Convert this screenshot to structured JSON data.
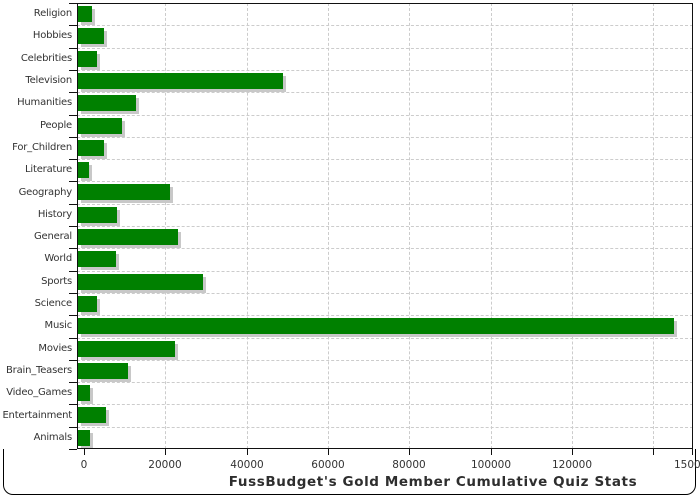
{
  "figure": {
    "title": "FussBudget's Gold Member Cumulative Quiz Stats"
  },
  "chart_data": {
    "type": "bar",
    "orientation": "horizontal",
    "title": "FussBudget's Gold Member Cumulative Quiz Stats",
    "categories": [
      "Religion",
      "Hobbies",
      "Celebrities",
      "Television",
      "Humanities",
      "People",
      "For_Children",
      "Literature",
      "Geography",
      "History",
      "General",
      "World",
      "Sports",
      "Science",
      "Music",
      "Movies",
      "Brain_Teasers",
      "Video_Games",
      "Entertainment",
      "Animals"
    ],
    "values": [
      1900,
      5000,
      3300,
      49000,
      12800,
      9300,
      4800,
      1300,
      21100,
      8000,
      23000,
      7800,
      29300,
      3200,
      145000,
      22400,
      10900,
      1500,
      5500,
      1400
    ],
    "xlabel": "",
    "ylabel": "",
    "xlim": [
      0,
      150000
    ],
    "x_tick_values": [
      0,
      20000,
      40000,
      60000,
      80000,
      100000,
      120000,
      140000,
      150000
    ],
    "x_tick_labels": [
      "0",
      "20000",
      "40000",
      "60000",
      "80000",
      "100000",
      "120000",
      "",
      "150000"
    ],
    "grid": "dashed, horizontal and vertical",
    "legend": "none",
    "colors": {
      "bar": "#008000",
      "bar_shadow": "#c8c8c8",
      "grid": "#cccccc",
      "frame": "#111111",
      "text": "#333333",
      "background": "#ffffff"
    }
  }
}
